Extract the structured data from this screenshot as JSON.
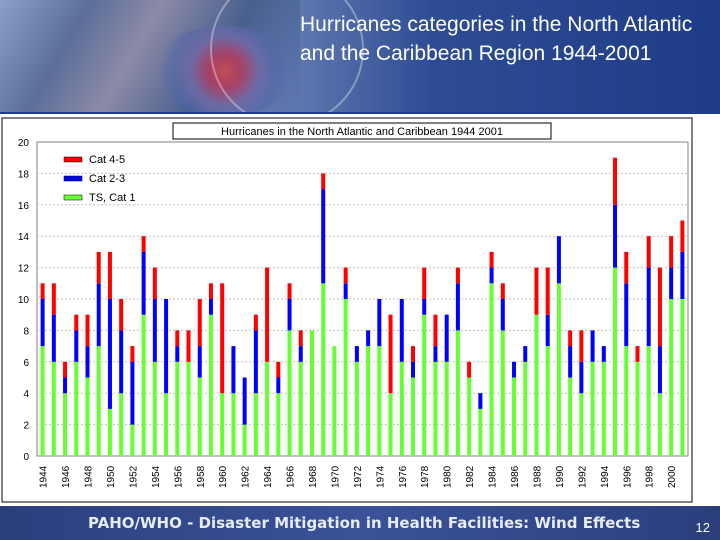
{
  "slide": {
    "title": "Hurricanes categories in the North Atlantic and the Caribbean Region 1944-2001",
    "footer": "PAHO/WHO - Disaster Mitigation in Health Facilities: Wind Effects",
    "page_number": "12"
  },
  "chart_data": {
    "type": "bar",
    "stacked": true,
    "title": "Hurricanes in the North Atlantic and Caribbean 1944 2001",
    "xlabel": "",
    "ylabel": "",
    "ylim": [
      0,
      20
    ],
    "yticks": [
      0,
      2,
      4,
      6,
      8,
      10,
      12,
      14,
      16,
      18,
      20
    ],
    "grid": true,
    "legend_position": "top-left",
    "categories": [
      "1944",
      "1945",
      "1946",
      "1947",
      "1948",
      "1949",
      "1950",
      "1951",
      "1952",
      "1953",
      "1954",
      "1955",
      "1956",
      "1957",
      "1958",
      "1959",
      "1960",
      "1961",
      "1962",
      "1963",
      "1964",
      "1965",
      "1966",
      "1967",
      "1968",
      "1969",
      "1970",
      "1971",
      "1972",
      "1973",
      "1974",
      "1975",
      "1976",
      "1977",
      "1978",
      "1979",
      "1980",
      "1981",
      "1982",
      "1983",
      "1984",
      "1985",
      "1986",
      "1987",
      "1988",
      "1989",
      "1990",
      "1991",
      "1992",
      "1993",
      "1994",
      "1995",
      "1996",
      "1997",
      "1998",
      "1999",
      "2000",
      "2001"
    ],
    "tick_labels": [
      "1944",
      "1946",
      "1948",
      "1950",
      "1952",
      "1954",
      "1956",
      "1958",
      "1960",
      "1962",
      "1964",
      "1966",
      "1968",
      "1970",
      "1972",
      "1974",
      "1976",
      "1978",
      "1980",
      "1982",
      "1984",
      "1986",
      "1988",
      "1990",
      "1992",
      "1994",
      "1996",
      "1998",
      "2000"
    ],
    "series": [
      {
        "name": "TS, Cat 1",
        "color": "#66ff33",
        "values": [
          7,
          6,
          4,
          6,
          5,
          7,
          3,
          4,
          2,
          9,
          6,
          4,
          6,
          6,
          5,
          9,
          4,
          4,
          2,
          4,
          6,
          4,
          8,
          6,
          8,
          11,
          7,
          10,
          6,
          7,
          7,
          4,
          6,
          5,
          9,
          6,
          6,
          8,
          5,
          3,
          11,
          8,
          5,
          6,
          9,
          7,
          11,
          5,
          4,
          6,
          6,
          12,
          7,
          6,
          7,
          4,
          10,
          10
        ]
      },
      {
        "name": "Cat 2-3",
        "color": "#0000ff",
        "values": [
          3,
          3,
          1,
          2,
          2,
          4,
          7,
          4,
          4,
          4,
          4,
          6,
          1,
          0,
          2,
          1,
          0,
          3,
          3,
          4,
          0,
          1,
          2,
          1,
          0,
          6,
          0,
          1,
          1,
          1,
          3,
          0,
          4,
          1,
          1,
          1,
          3,
          3,
          0,
          1,
          1,
          2,
          1,
          1,
          0,
          2,
          3,
          2,
          2,
          2,
          1,
          4,
          4,
          0,
          5,
          3,
          2,
          3
        ]
      },
      {
        "name": "Cat 4-5",
        "color": "#ff0000",
        "values": [
          1,
          2,
          1,
          1,
          2,
          2,
          3,
          2,
          1,
          1,
          2,
          0,
          1,
          2,
          3,
          1,
          7,
          0,
          0,
          1,
          6,
          1,
          1,
          1,
          0,
          1,
          0,
          1,
          0,
          0,
          0,
          5,
          0,
          1,
          2,
          2,
          0,
          1,
          1,
          0,
          1,
          1,
          0,
          0,
          3,
          3,
          0,
          1,
          2,
          0,
          0,
          3,
          2,
          1,
          2,
          5,
          2,
          2
        ]
      }
    ]
  }
}
